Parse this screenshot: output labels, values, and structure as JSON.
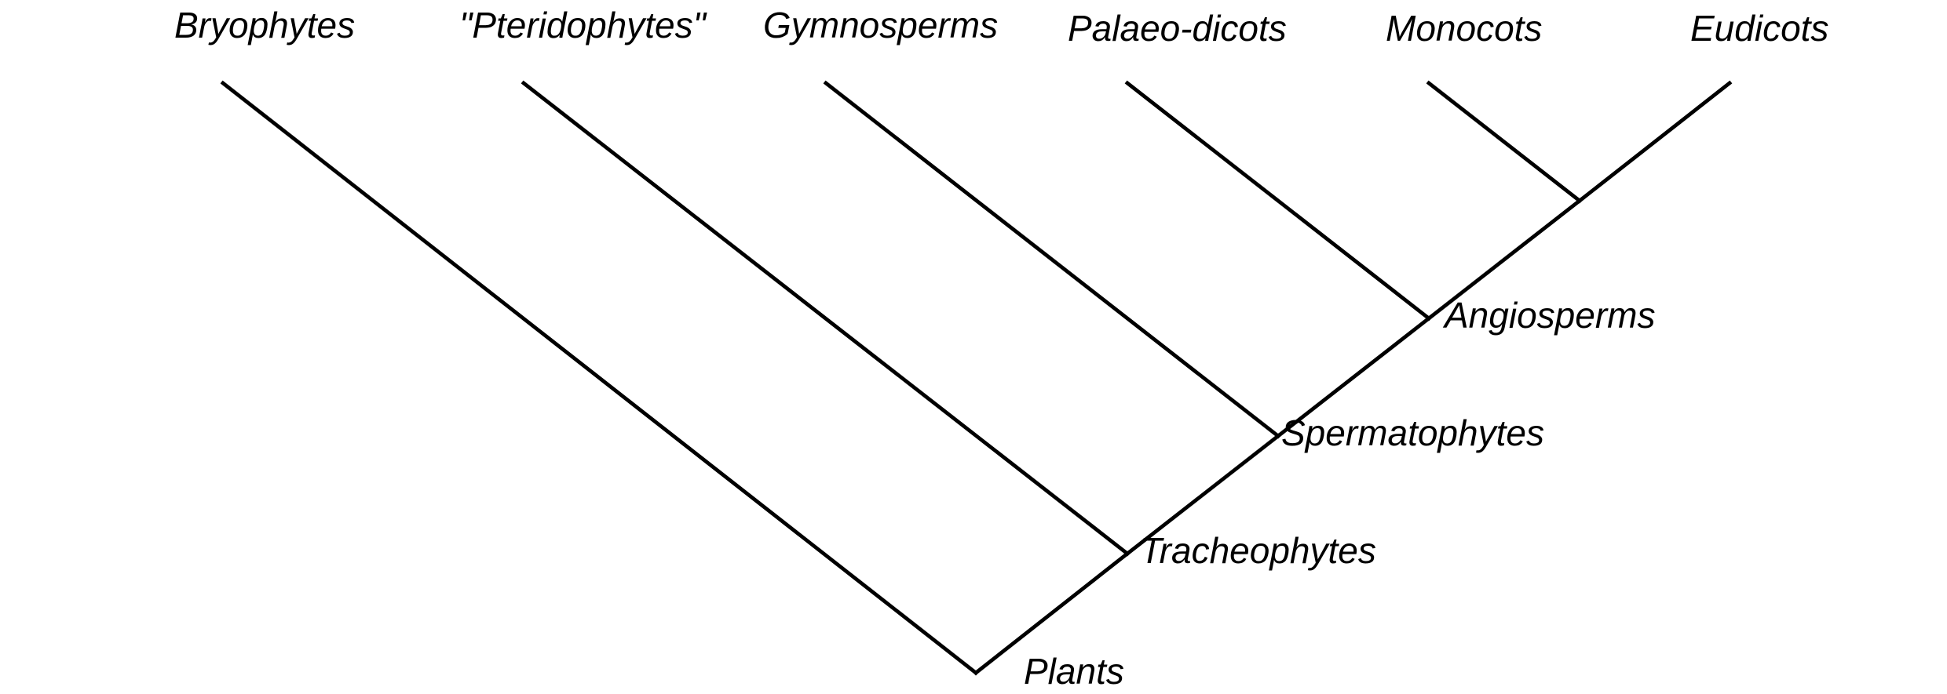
{
  "diagram": {
    "type": "cladogram",
    "line_color": "#000000",
    "taxa": [
      {
        "id": "bryophytes",
        "label": "Bryophytes"
      },
      {
        "id": "pteridophytes",
        "label": "\"Pteridophytes\""
      },
      {
        "id": "gymnosperms",
        "label": "Gymnosperms"
      },
      {
        "id": "palaeo-dicots",
        "label": "Palaeo-dicots"
      },
      {
        "id": "monocots",
        "label": "Monocots"
      },
      {
        "id": "eudicots",
        "label": "Eudicots"
      }
    ],
    "clades": [
      {
        "id": "plants",
        "label": "Plants"
      },
      {
        "id": "tracheophytes",
        "label": "Tracheophytes"
      },
      {
        "id": "spermatophytes",
        "label": "Spermatophytes"
      },
      {
        "id": "angiosperms",
        "label": "Angiosperms"
      },
      {
        "id": "monocots-eudicots",
        "label": ""
      }
    ],
    "branches": [
      {
        "from": "plants",
        "to": "bryophytes"
      },
      {
        "from": "plants",
        "to": "tracheophytes"
      },
      {
        "from": "tracheophytes",
        "to": "pteridophytes"
      },
      {
        "from": "tracheophytes",
        "to": "spermatophytes"
      },
      {
        "from": "spermatophytes",
        "to": "gymnosperms"
      },
      {
        "from": "spermatophytes",
        "to": "angiosperms"
      },
      {
        "from": "angiosperms",
        "to": "palaeo-dicots"
      },
      {
        "from": "angiosperms",
        "to": "monocots-eudicots"
      },
      {
        "from": "monocots-eudicots",
        "to": "monocots"
      },
      {
        "from": "monocots-eudicots",
        "to": "eudicots"
      }
    ]
  }
}
